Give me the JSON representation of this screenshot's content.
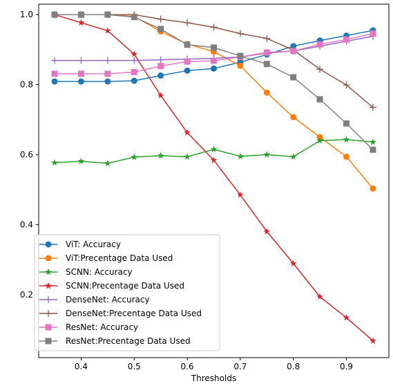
{
  "chart_data": {
    "type": "line",
    "title": "",
    "xlabel": "Thresholds",
    "ylabel": "",
    "xlim": [
      0.32,
      0.98
    ],
    "ylim": [
      0.02,
      1.03
    ],
    "x": [
      0.35,
      0.4,
      0.45,
      0.5,
      0.55,
      0.6,
      0.65,
      0.7,
      0.75,
      0.8,
      0.85,
      0.9,
      0.95
    ],
    "xticks": [
      0.4,
      0.5,
      0.6,
      0.7,
      0.8,
      0.9
    ],
    "xtick_labels": [
      "0.4",
      "0.5",
      "0.6",
      "0.7",
      "0.8",
      "0.9"
    ],
    "yticks": [
      0.2,
      0.4,
      0.6,
      0.8,
      1.0
    ],
    "ytick_labels": [
      "0.2",
      "0.4",
      "0.6",
      "0.8",
      "1.0"
    ],
    "grid": false,
    "legend_position": "lower-left",
    "series": [
      {
        "name": "ViT: Accuracy",
        "color": "#1f77b4",
        "marker": "circle",
        "values": [
          0.809,
          0.809,
          0.809,
          0.811,
          0.826,
          0.84,
          0.846,
          0.864,
          0.886,
          0.91,
          0.926,
          0.94,
          0.955
        ]
      },
      {
        "name": "ViT:Precentage Data Used",
        "color": "#ff7f0e",
        "marker": "circle",
        "values": [
          1.0,
          1.0,
          1.0,
          0.995,
          0.952,
          0.916,
          0.894,
          0.854,
          0.777,
          0.707,
          0.65,
          0.594,
          0.503
        ]
      },
      {
        "name": "SCNN: Accuracy",
        "color": "#2ca02c",
        "marker": "star",
        "values": [
          0.577,
          0.581,
          0.575,
          0.593,
          0.597,
          0.594,
          0.615,
          0.595,
          0.6,
          0.594,
          0.64,
          0.643,
          0.636
        ]
      },
      {
        "name": "SCNN:Precentage Data Used",
        "color": "#d62728",
        "marker": "star",
        "values": [
          1.0,
          0.977,
          0.954,
          0.887,
          0.769,
          0.663,
          0.584,
          0.485,
          0.38,
          0.289,
          0.194,
          0.134,
          0.068
        ]
      },
      {
        "name": "DenseNet: Accuracy",
        "color": "#9467bd",
        "marker": "plus",
        "values": [
          0.869,
          0.869,
          0.869,
          0.869,
          0.871,
          0.873,
          0.875,
          0.879,
          0.89,
          0.896,
          0.91,
          0.924,
          0.938
        ]
      },
      {
        "name": "DenseNet:Precentage Data Used",
        "color": "#8c564b",
        "marker": "plus",
        "values": [
          1.0,
          1.0,
          1.0,
          1.0,
          0.987,
          0.977,
          0.964,
          0.946,
          0.932,
          0.899,
          0.844,
          0.799,
          0.735
        ]
      },
      {
        "name": "ResNet: Accuracy",
        "color": "#e377c2",
        "marker": "square",
        "values": [
          0.831,
          0.831,
          0.831,
          0.836,
          0.853,
          0.866,
          0.868,
          0.879,
          0.892,
          0.896,
          0.915,
          0.929,
          0.946
        ]
      },
      {
        "name": "ResNet:Precentage Data Used",
        "color": "#7f7f7f",
        "marker": "square",
        "values": [
          1.0,
          1.0,
          1.0,
          0.993,
          0.959,
          0.914,
          0.906,
          0.882,
          0.859,
          0.821,
          0.758,
          0.689,
          0.614
        ]
      }
    ]
  }
}
